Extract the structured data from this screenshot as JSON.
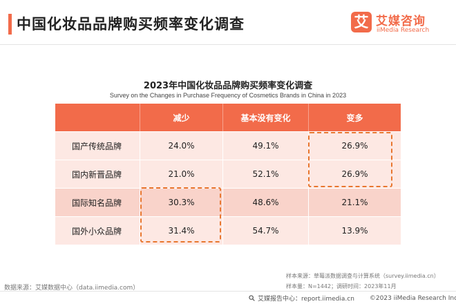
{
  "header": {
    "title": "中国化妆品品牌购买频率变化调查",
    "logo": {
      "name": "艾媒咨询",
      "sub": "iiMedia Research",
      "mark": "艾"
    },
    "accent_color": "#f26b4a"
  },
  "chart_data": {
    "type": "table",
    "title": "2023年中国化妆品品牌购买频率变化调查",
    "subtitle": "Survey on the Changes in Purchase Frequency of Cosmetics Brands in China in 2023",
    "columns": [
      "",
      "减少",
      "基本没有变化",
      "变多"
    ],
    "rows": [
      {
        "label": "国产传统品牌",
        "values": [
          "24.0%",
          "49.1%",
          "26.9%"
        ]
      },
      {
        "label": "国内新晋品牌",
        "values": [
          "21.0%",
          "52.1%",
          "26.9%"
        ]
      },
      {
        "label": "国际知名品牌",
        "values": [
          "30.3%",
          "48.6%",
          "21.1%"
        ]
      },
      {
        "label": "国外小众品牌",
        "values": [
          "31.4%",
          "54.7%",
          "13.9%"
        ]
      }
    ],
    "header_color": "#f26b4a",
    "highlight_color": "#e8762e"
  },
  "notes": {
    "sample_source": "样本来源：草莓派数据调查与计算系统（survey.iimedia.cn）",
    "sample_size": "样本量：N=1442；调研时间：2023年11月",
    "data_source": "数据来源：艾媒数据中心（data.iimedia.com）"
  },
  "footer": {
    "report_center": "艾媒报告中心：report.iimedia.cn",
    "copyright": "©2023  iiMedia Research  Inc"
  }
}
